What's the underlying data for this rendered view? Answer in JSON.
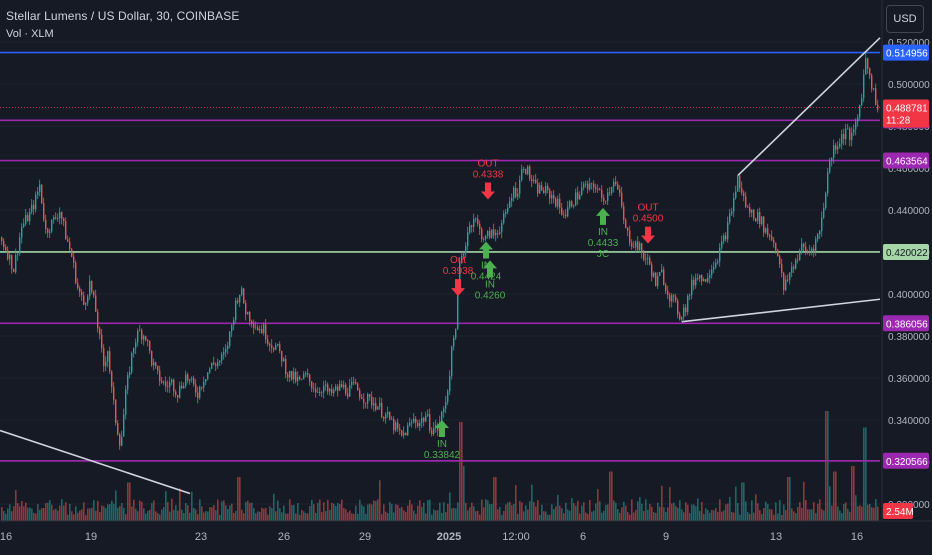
{
  "header": {
    "title": "Stellar Lumens / US Dollar, 30, COINBASE",
    "volume_label": "Vol · XLM",
    "currency_button": "USD"
  },
  "colors": {
    "background": "#161a25",
    "up_candle": "#26a69a",
    "down_candle": "#ef5350",
    "buy_arrow": "#4caf50",
    "sell_arrow": "#f23645",
    "line_blue": "#2962ff",
    "line_purple": "#9c27b0",
    "line_green": "#a5d6a7",
    "trendline": "#d1d4dc",
    "price_tag_red": "#f23645"
  },
  "chart_data": {
    "type": "candlestick",
    "ylim": [
      0.31,
      0.523
    ],
    "y_ticks": [
      "0.520000",
      "0.500000",
      "0.480000",
      "0.460000",
      "0.440000",
      "0.420000",
      "0.400000",
      "0.380000",
      "0.360000",
      "0.340000",
      "0.320000",
      "0.300000"
    ],
    "x_ticks": [
      "16",
      "19",
      "23",
      "26",
      "29",
      "2025",
      "12:00",
      "6",
      "9",
      "13",
      "16"
    ],
    "horizontal_levels": [
      {
        "value": 0.514956,
        "label": "0.514956",
        "color": "#2962ff"
      },
      {
        "value": 0.482704,
        "label": "0.482704",
        "color": "#9c27b0"
      },
      {
        "value": 0.463564,
        "label": "0.463564",
        "color": "#9c27b0"
      },
      {
        "value": 0.420022,
        "label": "0.420022",
        "color": "#a5d6a7"
      },
      {
        "value": 0.386056,
        "label": "0.386056",
        "color": "#9c27b0"
      },
      {
        "value": 0.320566,
        "label": "0.320566",
        "color": "#9c27b0"
      }
    ],
    "current_price": {
      "value": 0.488781,
      "label": "0.488781",
      "countdown": "11:28"
    },
    "volume_label": "2.54M",
    "path": [
      [
        0,
        0.427
      ],
      [
        6,
        0.422
      ],
      [
        14,
        0.412
      ],
      [
        22,
        0.432
      ],
      [
        30,
        0.438
      ],
      [
        36,
        0.445
      ],
      [
        40,
        0.452
      ],
      [
        46,
        0.43
      ],
      [
        54,
        0.435
      ],
      [
        60,
        0.44
      ],
      [
        66,
        0.428
      ],
      [
        72,
        0.418
      ],
      [
        78,
        0.403
      ],
      [
        84,
        0.395
      ],
      [
        90,
        0.405
      ],
      [
        96,
        0.392
      ],
      [
        100,
        0.378
      ],
      [
        104,
        0.366
      ],
      [
        108,
        0.374
      ],
      [
        112,
        0.354
      ],
      [
        116,
        0.34
      ],
      [
        121,
        0.328
      ],
      [
        126,
        0.352
      ],
      [
        130,
        0.365
      ],
      [
        135,
        0.378
      ],
      [
        140,
        0.382
      ],
      [
        146,
        0.38
      ],
      [
        152,
        0.368
      ],
      [
        158,
        0.361
      ],
      [
        166,
        0.356
      ],
      [
        172,
        0.358
      ],
      [
        178,
        0.353
      ],
      [
        186,
        0.361
      ],
      [
        192,
        0.357
      ],
      [
        198,
        0.353
      ],
      [
        204,
        0.36
      ],
      [
        212,
        0.366
      ],
      [
        220,
        0.368
      ],
      [
        226,
        0.372
      ],
      [
        232,
        0.385
      ],
      [
        237,
        0.398
      ],
      [
        241,
        0.402
      ],
      [
        246,
        0.392
      ],
      [
        252,
        0.388
      ],
      [
        258,
        0.384
      ],
      [
        264,
        0.383
      ],
      [
        270,
        0.377
      ],
      [
        276,
        0.375
      ],
      [
        282,
        0.37
      ],
      [
        288,
        0.362
      ],
      [
        294,
        0.36
      ],
      [
        300,
        0.358
      ],
      [
        306,
        0.361
      ],
      [
        312,
        0.357
      ],
      [
        318,
        0.354
      ],
      [
        324,
        0.356
      ],
      [
        330,
        0.352
      ],
      [
        336,
        0.354
      ],
      [
        342,
        0.356
      ],
      [
        348,
        0.354
      ],
      [
        354,
        0.356
      ],
      [
        360,
        0.353
      ],
      [
        366,
        0.35
      ],
      [
        372,
        0.349
      ],
      [
        378,
        0.347
      ],
      [
        384,
        0.343
      ],
      [
        390,
        0.34
      ],
      [
        396,
        0.336
      ],
      [
        402,
        0.332
      ],
      [
        408,
        0.336
      ],
      [
        414,
        0.34
      ],
      [
        420,
        0.339
      ],
      [
        426,
        0.342
      ],
      [
        432,
        0.336
      ],
      [
        438,
        0.336
      ],
      [
        444,
        0.345
      ],
      [
        448,
        0.355
      ],
      [
        452,
        0.372
      ],
      [
        456,
        0.386
      ],
      [
        460,
        0.414
      ],
      [
        464,
        0.42
      ],
      [
        468,
        0.43
      ],
      [
        474,
        0.437
      ],
      [
        480,
        0.43
      ],
      [
        486,
        0.426
      ],
      [
        490,
        0.429
      ],
      [
        494,
        0.428
      ],
      [
        500,
        0.432
      ],
      [
        506,
        0.437
      ],
      [
        512,
        0.448
      ],
      [
        518,
        0.45
      ],
      [
        524,
        0.462
      ],
      [
        530,
        0.456
      ],
      [
        536,
        0.45
      ],
      [
        542,
        0.45
      ],
      [
        548,
        0.448
      ],
      [
        554,
        0.446
      ],
      [
        560,
        0.441
      ],
      [
        566,
        0.438
      ],
      [
        572,
        0.444
      ],
      [
        578,
        0.447
      ],
      [
        584,
        0.451
      ],
      [
        590,
        0.45
      ],
      [
        596,
        0.452
      ],
      [
        602,
        0.445
      ],
      [
        608,
        0.448
      ],
      [
        614,
        0.455
      ],
      [
        620,
        0.446
      ],
      [
        626,
        0.43
      ],
      [
        632,
        0.425
      ],
      [
        638,
        0.423
      ],
      [
        644,
        0.418
      ],
      [
        650,
        0.414
      ],
      [
        656,
        0.405
      ],
      [
        662,
        0.41
      ],
      [
        668,
        0.401
      ],
      [
        674,
        0.396
      ],
      [
        680,
        0.39
      ],
      [
        686,
        0.394
      ],
      [
        692,
        0.404
      ],
      [
        698,
        0.41
      ],
      [
        704,
        0.406
      ],
      [
        710,
        0.412
      ],
      [
        716,
        0.416
      ],
      [
        722,
        0.423
      ],
      [
        728,
        0.432
      ],
      [
        734,
        0.445
      ],
      [
        738,
        0.455
      ],
      [
        742,
        0.448
      ],
      [
        748,
        0.44
      ],
      [
        754,
        0.438
      ],
      [
        760,
        0.436
      ],
      [
        766,
        0.43
      ],
      [
        772,
        0.427
      ],
      [
        778,
        0.42
      ],
      [
        784,
        0.402
      ],
      [
        790,
        0.41
      ],
      [
        796,
        0.416
      ],
      [
        802,
        0.422
      ],
      [
        808,
        0.42
      ],
      [
        814,
        0.423
      ],
      [
        820,
        0.43
      ],
      [
        824,
        0.442
      ],
      [
        828,
        0.458
      ],
      [
        834,
        0.47
      ],
      [
        840,
        0.473
      ],
      [
        846,
        0.478
      ],
      [
        852,
        0.474
      ],
      [
        858,
        0.484
      ],
      [
        862,
        0.496
      ],
      [
        866,
        0.512
      ],
      [
        870,
        0.505
      ],
      [
        874,
        0.496
      ],
      [
        878,
        0.489
      ]
    ],
    "volume_spikes": [
      {
        "x": 460,
        "h": 0.9
      },
      {
        "x": 462,
        "h": 0.5
      },
      {
        "x": 494,
        "h": 0.4
      },
      {
        "x": 610,
        "h": 0.45
      },
      {
        "x": 742,
        "h": 0.35
      },
      {
        "x": 788,
        "h": 0.4
      },
      {
        "x": 826,
        "h": 1.0
      },
      {
        "x": 864,
        "h": 0.85
      },
      {
        "x": 852,
        "h": 0.5
      },
      {
        "x": 834,
        "h": 0.45
      },
      {
        "x": 238,
        "h": 0.4
      },
      {
        "x": 128,
        "h": 0.35
      }
    ],
    "signals": [
      {
        "type": "buy",
        "x": 442,
        "price": 0.34,
        "labels": [
          "IN",
          "0.33842"
        ]
      },
      {
        "type": "sell",
        "x": 458,
        "price": 0.399,
        "labels": [
          "Out",
          "0.3938"
        ]
      },
      {
        "type": "sell",
        "x": 488,
        "price": 0.445,
        "labels": [
          "OUT",
          "0.4338"
        ]
      },
      {
        "type": "buy",
        "x": 486,
        "price": 0.425,
        "labels": [
          "IN",
          "0.4424"
        ]
      },
      {
        "type": "buy",
        "x": 490,
        "price": 0.416,
        "labels": [
          "IN",
          "0.4260"
        ]
      },
      {
        "type": "buy",
        "x": 603,
        "price": 0.441,
        "labels": [
          "IN",
          "0.4433",
          "JC"
        ]
      },
      {
        "type": "sell",
        "x": 648,
        "price": 0.424,
        "labels": [
          "OUT",
          "0.4500"
        ]
      }
    ],
    "trendlines": [
      {
        "from": [
          0,
          0.335
        ],
        "to": [
          190,
          0.305
        ]
      },
      {
        "from": [
          682,
          0.3868
        ],
        "to": [
          880,
          0.3975
        ]
      },
      {
        "from": [
          738,
          0.4565
        ],
        "to": [
          880,
          0.522
        ]
      }
    ]
  }
}
